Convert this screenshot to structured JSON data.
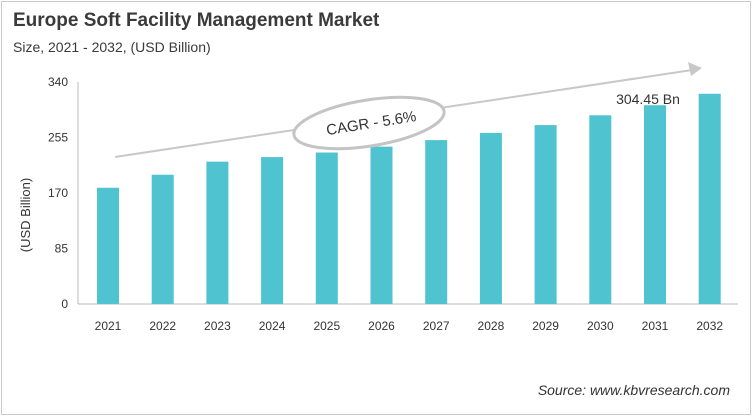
{
  "title": "Europe Soft Facility Management Market",
  "subtitle": "Size, 2021 - 2032, (USD Billion)",
  "source": "Source: www.kbvresearch.com",
  "chart_data": {
    "type": "bar",
    "categories": [
      "2021",
      "2022",
      "2023",
      "2024",
      "2025",
      "2026",
      "2027",
      "2028",
      "2029",
      "2030",
      "2031",
      "2032"
    ],
    "values": [
      178,
      198,
      218,
      225,
      232,
      241,
      251,
      262,
      274,
      289,
      304.45,
      322
    ],
    "ylabel": "(USD Billion)",
    "ylim": [
      0,
      340
    ],
    "yticks": [
      0,
      85,
      170,
      255,
      340
    ],
    "grid": false,
    "bar_color": "#4fc3cf",
    "annotations": {
      "cagr": "CAGR - 5.6%",
      "value_label": "304.45 Bn"
    }
  }
}
